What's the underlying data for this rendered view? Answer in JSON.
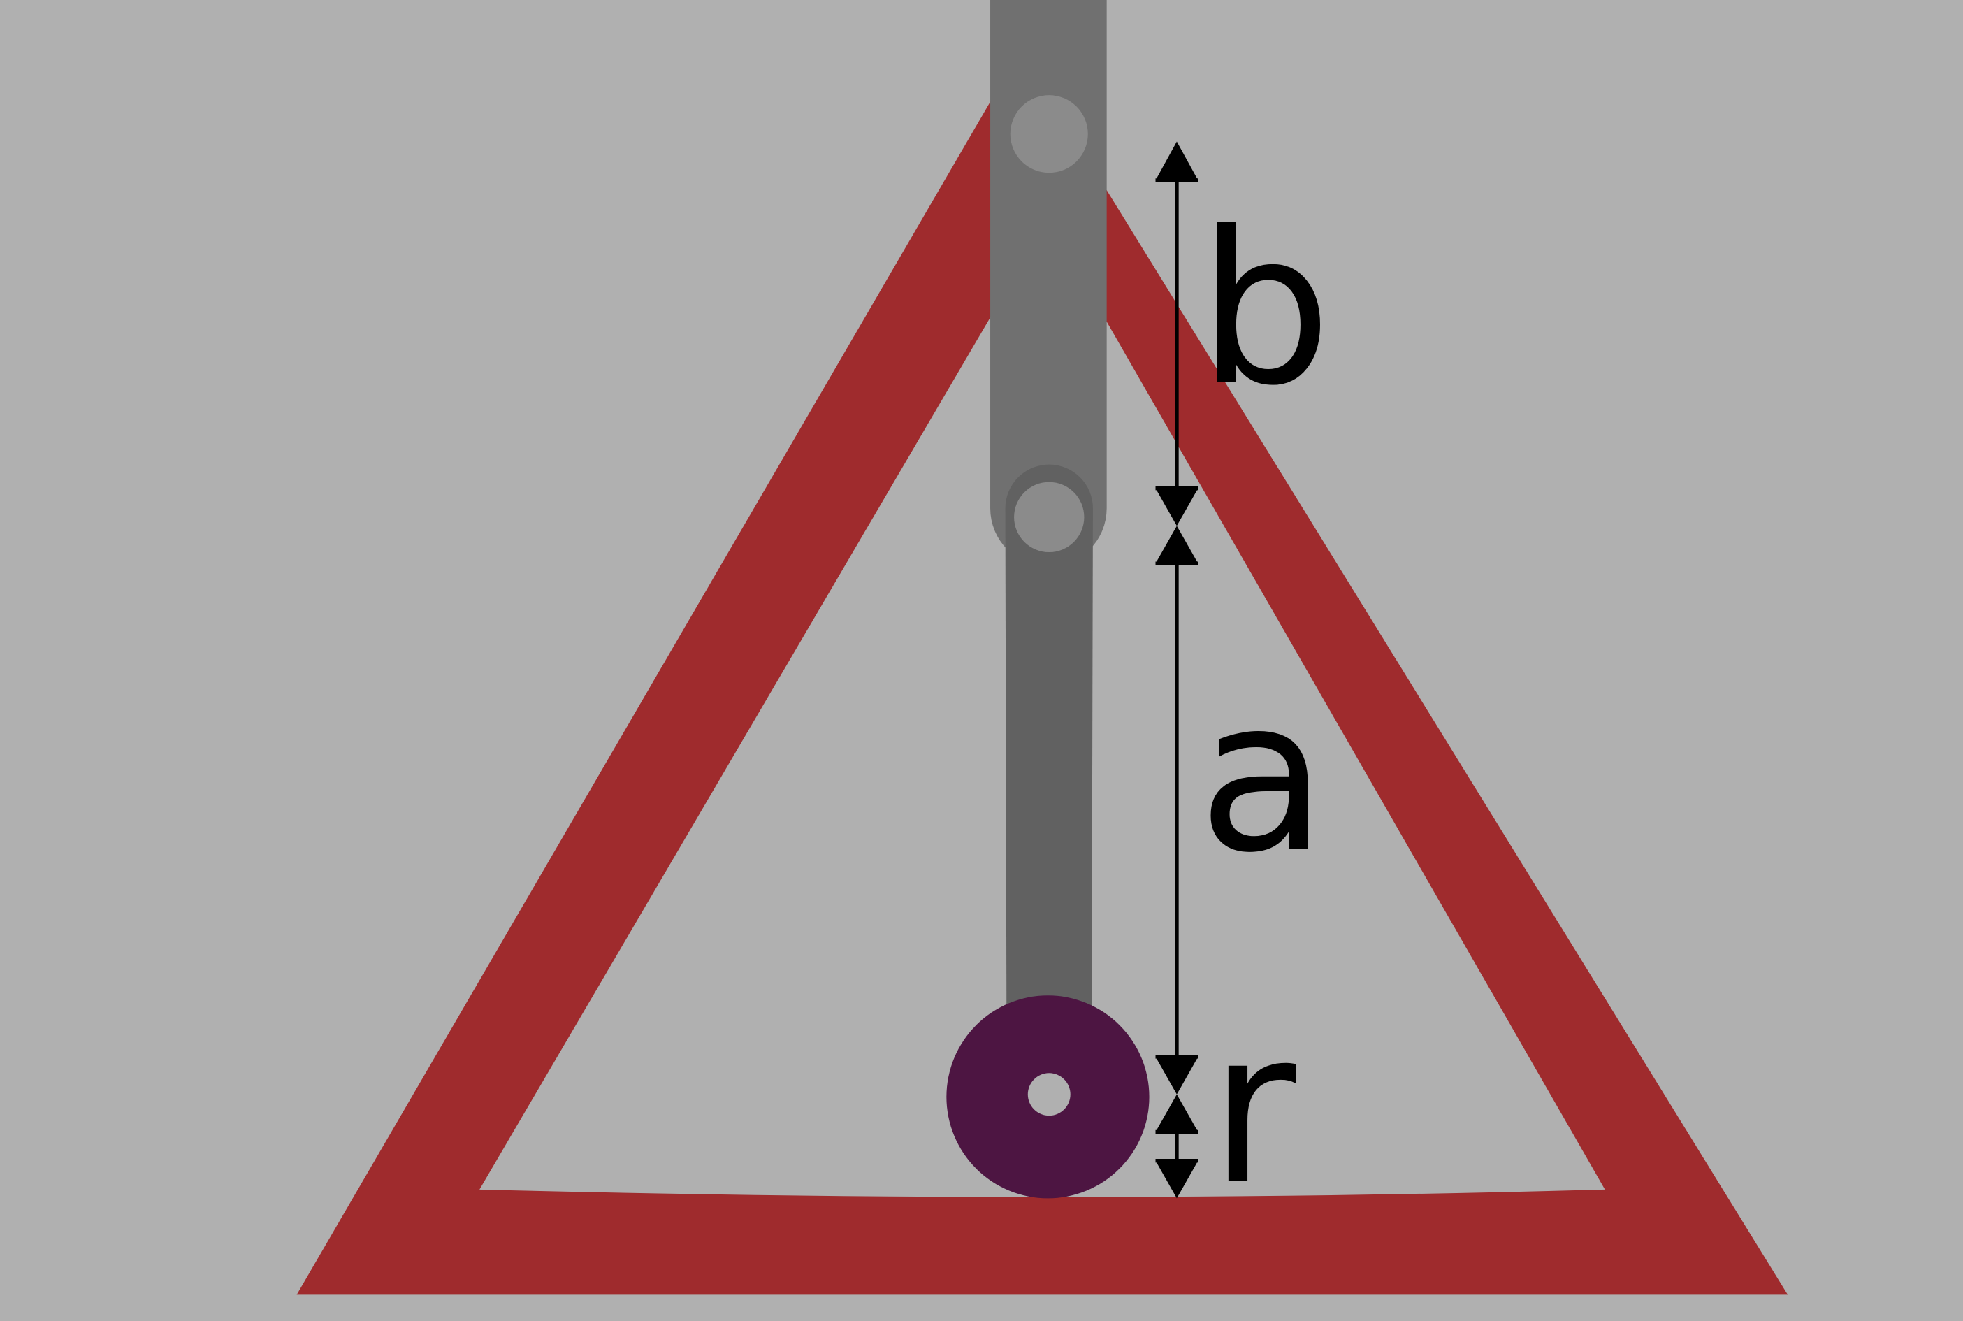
{
  "colors": {
    "background": "#b0b0b0",
    "frame": "#9f2b2d",
    "upper_link": "#707070",
    "lower_link": "#616161",
    "pivot": "#8b8b8b",
    "wheel": "#4d1542",
    "dimension": "#000000"
  },
  "dimensions": {
    "b": "b",
    "a": "a",
    "r": "r"
  }
}
